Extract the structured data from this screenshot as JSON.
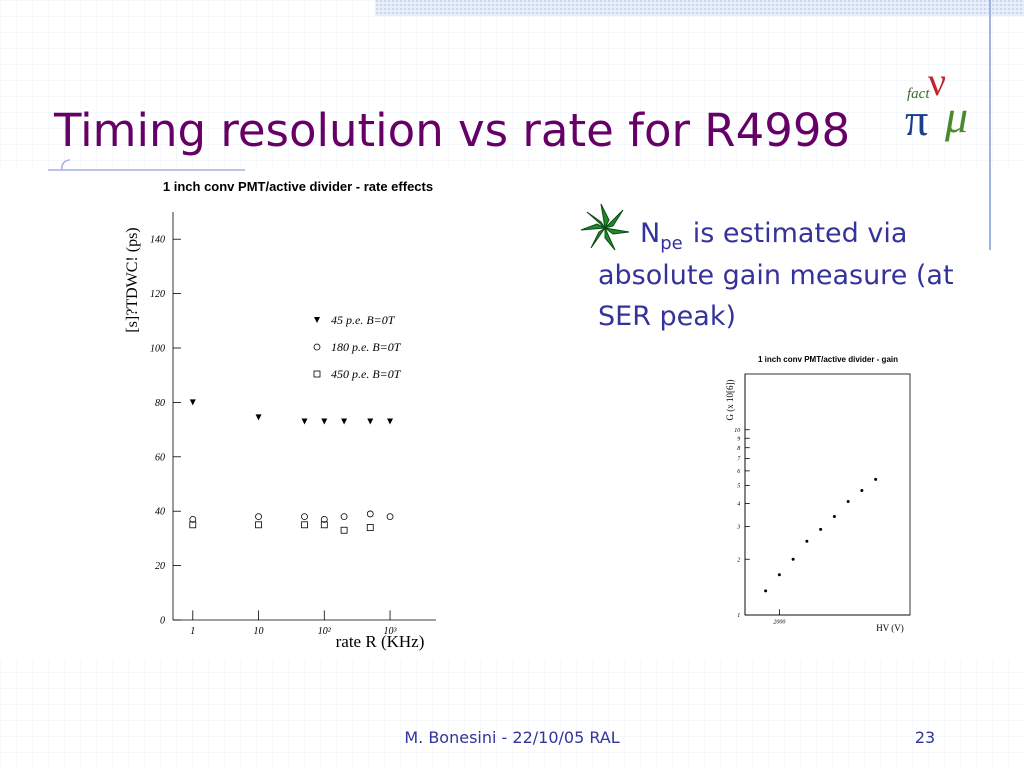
{
  "slide": {
    "title": "Timing resolution vs rate  for R4998",
    "bullet": {
      "main": "N",
      "subscript": "pe",
      "lines": [
        "is estimated via",
        "absolute gain measure (at",
        "SER peak)"
      ]
    },
    "logo": {
      "text": "fact",
      "letters": [
        "π",
        "ν",
        "μ"
      ]
    },
    "footer": "M. Bonesini - 22/10/05 RAL",
    "page": "23"
  },
  "chart_data": [
    {
      "type": "scatter",
      "title": "1 inch conv PMT/active divider - rate effects",
      "x_label": "rate R (KHz)",
      "y_label": "[s]?TDWC! (ps)",
      "xscale": "log",
      "xlim": [
        0.5,
        5000
      ],
      "xticks": [
        1,
        10,
        {
          "value": 100,
          "label": "10²"
        },
        {
          "value": 1000,
          "label": "10³"
        }
      ],
      "ylim": [
        0,
        150
      ],
      "yticks": [
        0,
        20,
        40,
        60,
        80,
        100,
        120,
        140
      ],
      "legend": "upper-right",
      "series": [
        {
          "name": "45 p.e. B=0T",
          "color": "#000000",
          "marker": "triangle-down",
          "x": [
            1,
            10,
            50,
            100,
            200,
            500,
            1000
          ],
          "values": [
            80,
            74.5,
            73,
            73,
            73,
            73,
            73
          ]
        },
        {
          "name": "180 p.e. B=0T",
          "color": "#000000",
          "marker": "circle",
          "x": [
            1,
            10,
            50,
            100,
            200,
            500,
            1000
          ],
          "values": [
            37,
            38,
            38,
            37,
            38,
            39,
            38
          ]
        },
        {
          "name": "450 p.e. B=0T",
          "color": "#000000",
          "marker": "square",
          "x": [
            1,
            10,
            50,
            100,
            200,
            500
          ],
          "values": [
            35,
            35,
            35,
            35,
            33,
            34
          ]
        }
      ]
    },
    {
      "type": "scatter",
      "title": "1 inch conv PMT/active divider - gain",
      "x_label": "HV (V)",
      "y_label": "G (x 10[6])",
      "xlim": [
        1750,
        2950
      ],
      "xticks": [
        2000
      ],
      "yscale": "log",
      "ylim": [
        1,
        20
      ],
      "yticks": [
        1,
        2,
        3,
        4,
        5,
        6,
        7,
        8,
        9,
        10
      ],
      "frame": true,
      "series": [
        {
          "color": "#000000",
          "marker": "dot",
          "x": [
            1900,
            2000,
            2100,
            2200,
            2300,
            2400,
            2500,
            2600,
            2700
          ],
          "values": [
            1.35,
            1.65,
            2.0,
            2.5,
            2.9,
            3.4,
            4.1,
            4.7,
            5.4
          ]
        }
      ]
    }
  ]
}
